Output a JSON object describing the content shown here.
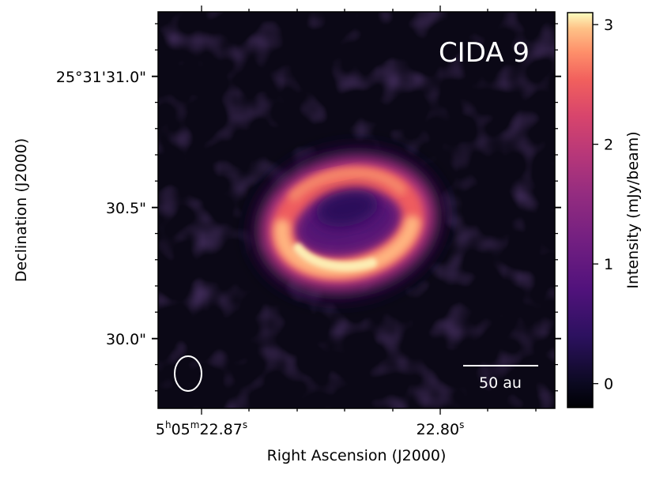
{
  "chart_data": {
    "type": "heatmap",
    "title": "CIDA 9",
    "xlabel": "Right Ascension (J2000)",
    "ylabel": "Declination (J2000)",
    "x_ticks": [
      {
        "main": "5",
        "sup1": "h",
        "mid": "05",
        "sup2": "m",
        "tail": "22.87",
        "sup3": "s"
      },
      {
        "main": "",
        "sup1": "",
        "mid": "",
        "sup2": "",
        "tail": "22.80",
        "sup3": "s"
      }
    ],
    "y_ticks": [
      "25°31'31.0\"",
      "30.5\"",
      "30.0\""
    ],
    "colorbar": {
      "label": "Intensity (mJy/beam)",
      "ticks": [
        "0",
        "1",
        "2",
        "3"
      ],
      "range": [
        -0.2,
        3.1
      ],
      "colormap": "magma"
    },
    "scalebar_label": "50 au",
    "feature": "ring",
    "colors": {
      "background": "#0b0816",
      "frame": "#000000",
      "annotation": "#ffffff"
    }
  }
}
